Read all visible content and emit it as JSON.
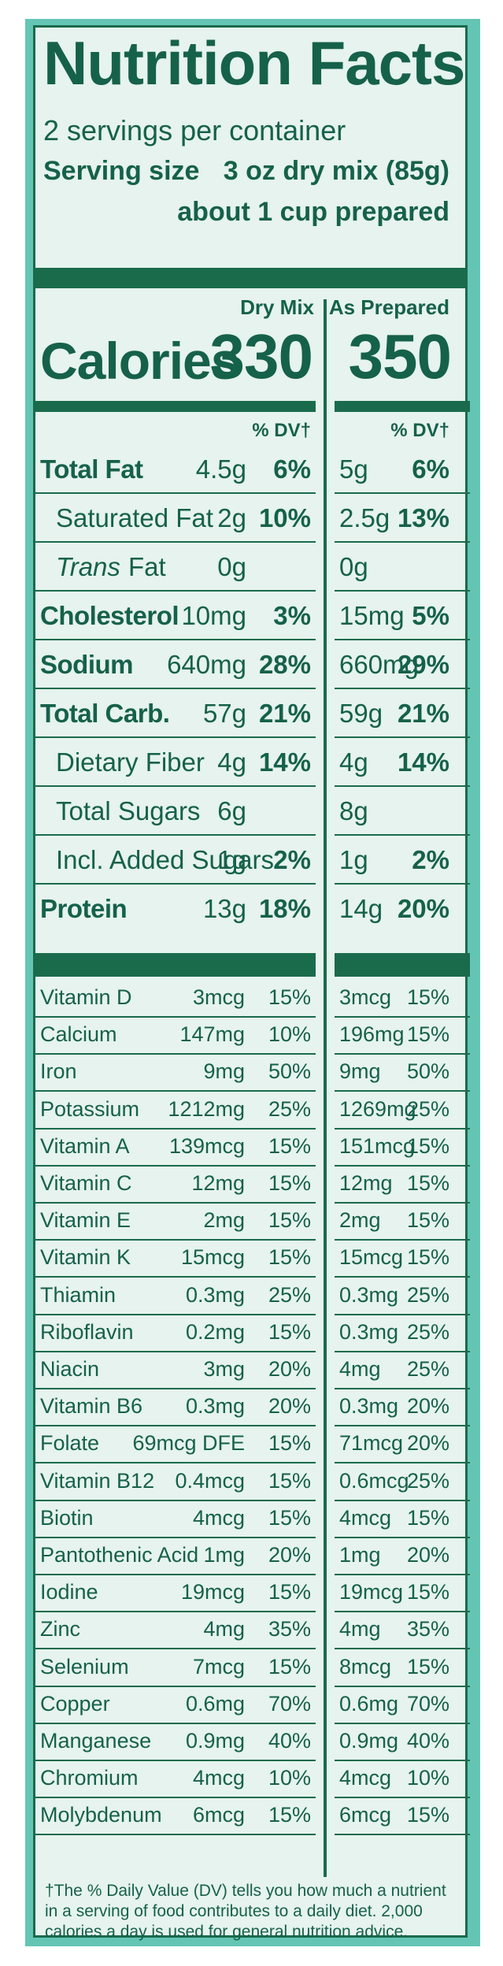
{
  "label": {
    "title": "Nutrition Facts",
    "servings": "2 servings per container",
    "serving_size_label": "Serving size",
    "serving_size_value": "3 oz dry mix (85g)",
    "serving_size_value2": "about 1 cup prepared",
    "col1": "Dry Mix",
    "col2": "As Prepared",
    "calories_label": "Calories",
    "calories_dry": "330",
    "calories_prep": "350",
    "dv_header": "% DV†",
    "main_rows": [
      {
        "name": "Total Fat",
        "bold": true,
        "indent": false,
        "italic_prefix": "",
        "dry_amt": "4.5g",
        "dry_dv": "6%",
        "prep_amt": "5g",
        "prep_dv": "6%"
      },
      {
        "name": "Saturated Fat",
        "bold": false,
        "indent": true,
        "italic_prefix": "",
        "dry_amt": "2g",
        "dry_dv": "10%",
        "prep_amt": "2.5g",
        "prep_dv": "13%"
      },
      {
        "name": " Fat",
        "bold": false,
        "indent": true,
        "italic_prefix": "Trans",
        "dry_amt": "0g",
        "dry_dv": "",
        "prep_amt": "0g",
        "prep_dv": ""
      },
      {
        "name": "Cholesterol",
        "bold": true,
        "indent": false,
        "italic_prefix": "",
        "dry_amt": "10mg",
        "dry_dv": "3%",
        "prep_amt": "15mg",
        "prep_dv": "5%"
      },
      {
        "name": "Sodium",
        "bold": true,
        "indent": false,
        "italic_prefix": "",
        "dry_amt": "640mg",
        "dry_dv": "28%",
        "prep_amt": "660mg",
        "prep_dv": "29%"
      },
      {
        "name": "Total Carb.",
        "bold": true,
        "indent": false,
        "italic_prefix": "",
        "dry_amt": "57g",
        "dry_dv": "21%",
        "prep_amt": "59g",
        "prep_dv": "21%"
      },
      {
        "name": "Dietary Fiber",
        "bold": false,
        "indent": true,
        "italic_prefix": "",
        "dry_amt": "4g",
        "dry_dv": "14%",
        "prep_amt": "4g",
        "prep_dv": "14%"
      },
      {
        "name": "Total Sugars",
        "bold": false,
        "indent": true,
        "italic_prefix": "",
        "dry_amt": "6g",
        "dry_dv": "",
        "prep_amt": "8g",
        "prep_dv": ""
      },
      {
        "name": "Incl. Added Sugars",
        "bold": false,
        "indent": true,
        "italic_prefix": "",
        "dry_amt": "1g",
        "dry_dv": "2%",
        "prep_amt": "1g",
        "prep_dv": "2%"
      },
      {
        "name": "Protein",
        "bold": true,
        "indent": false,
        "italic_prefix": "",
        "dry_amt": "13g",
        "dry_dv": "18%",
        "prep_amt": "14g",
        "prep_dv": "20%"
      }
    ],
    "vitamins": [
      {
        "name": "Vitamin D",
        "dry_amt": "3mcg",
        "dry_dv": "15%",
        "prep_amt": "3mcg",
        "prep_dv": "15%"
      },
      {
        "name": "Calcium",
        "dry_amt": "147mg",
        "dry_dv": "10%",
        "prep_amt": "196mg",
        "prep_dv": "15%"
      },
      {
        "name": "Iron",
        "dry_amt": "9mg",
        "dry_dv": "50%",
        "prep_amt": "9mg",
        "prep_dv": "50%"
      },
      {
        "name": "Potassium",
        "dry_amt": "1212mg",
        "dry_dv": "25%",
        "prep_amt": "1269mg",
        "prep_dv": "25%"
      },
      {
        "name": "Vitamin A",
        "dry_amt": "139mcg",
        "dry_dv": "15%",
        "prep_amt": "151mcg",
        "prep_dv": "15%"
      },
      {
        "name": "Vitamin C",
        "dry_amt": "12mg",
        "dry_dv": "15%",
        "prep_amt": "12mg",
        "prep_dv": "15%"
      },
      {
        "name": "Vitamin E",
        "dry_amt": "2mg",
        "dry_dv": "15%",
        "prep_amt": "2mg",
        "prep_dv": "15%"
      },
      {
        "name": "Vitamin K",
        "dry_amt": "15mcg",
        "dry_dv": "15%",
        "prep_amt": "15mcg",
        "prep_dv": "15%"
      },
      {
        "name": "Thiamin",
        "dry_amt": "0.3mg",
        "dry_dv": "25%",
        "prep_amt": "0.3mg",
        "prep_dv": "25%"
      },
      {
        "name": "Riboflavin",
        "dry_amt": "0.2mg",
        "dry_dv": "15%",
        "prep_amt": "0.3mg",
        "prep_dv": "25%"
      },
      {
        "name": "Niacin",
        "dry_amt": "3mg",
        "dry_dv": "20%",
        "prep_amt": "4mg",
        "prep_dv": "25%"
      },
      {
        "name": "Vitamin B6",
        "dry_amt": "0.3mg",
        "dry_dv": "20%",
        "prep_amt": "0.3mg",
        "prep_dv": "20%"
      },
      {
        "name": "Folate",
        "dry_amt": "69mcg DFE",
        "dry_dv": "15%",
        "prep_amt": "71mcg",
        "prep_dv": "20%"
      },
      {
        "name": "Vitamin B12",
        "dry_amt": "0.4mcg",
        "dry_dv": "15%",
        "prep_amt": "0.6mcg",
        "prep_dv": "25%"
      },
      {
        "name": "Biotin",
        "dry_amt": "4mcg",
        "dry_dv": "15%",
        "prep_amt": "4mcg",
        "prep_dv": "15%"
      },
      {
        "name": "Pantothenic Acid",
        "dry_amt": "1mg",
        "dry_dv": "20%",
        "prep_amt": "1mg",
        "prep_dv": "20%"
      },
      {
        "name": "Iodine",
        "dry_amt": "19mcg",
        "dry_dv": "15%",
        "prep_amt": "19mcg",
        "prep_dv": "15%"
      },
      {
        "name": "Zinc",
        "dry_amt": "4mg",
        "dry_dv": "35%",
        "prep_amt": "4mg",
        "prep_dv": "35%"
      },
      {
        "name": "Selenium",
        "dry_amt": "7mcg",
        "dry_dv": "15%",
        "prep_amt": "8mcg",
        "prep_dv": "15%"
      },
      {
        "name": "Copper",
        "dry_amt": "0.6mg",
        "dry_dv": "70%",
        "prep_amt": "0.6mg",
        "prep_dv": "70%"
      },
      {
        "name": "Manganese",
        "dry_amt": "0.9mg",
        "dry_dv": "40%",
        "prep_amt": "0.9mg",
        "prep_dv": "40%"
      },
      {
        "name": "Chromium",
        "dry_amt": "4mcg",
        "dry_dv": "10%",
        "prep_amt": "4mcg",
        "prep_dv": "10%"
      },
      {
        "name": "Molybdenum",
        "dry_amt": "6mcg",
        "dry_dv": "15%",
        "prep_amt": "6mcg",
        "prep_dv": "15%"
      }
    ],
    "footnote": "†The % Daily Value (DV) tells you how much a nutrient in a serving of  food contributes to a daily diet. 2,000 calories a day is used for general nutrition advice."
  },
  "colors": {
    "ink": "#16614a",
    "panel": "#e6f3ee",
    "border_band": "#64c5b4"
  }
}
